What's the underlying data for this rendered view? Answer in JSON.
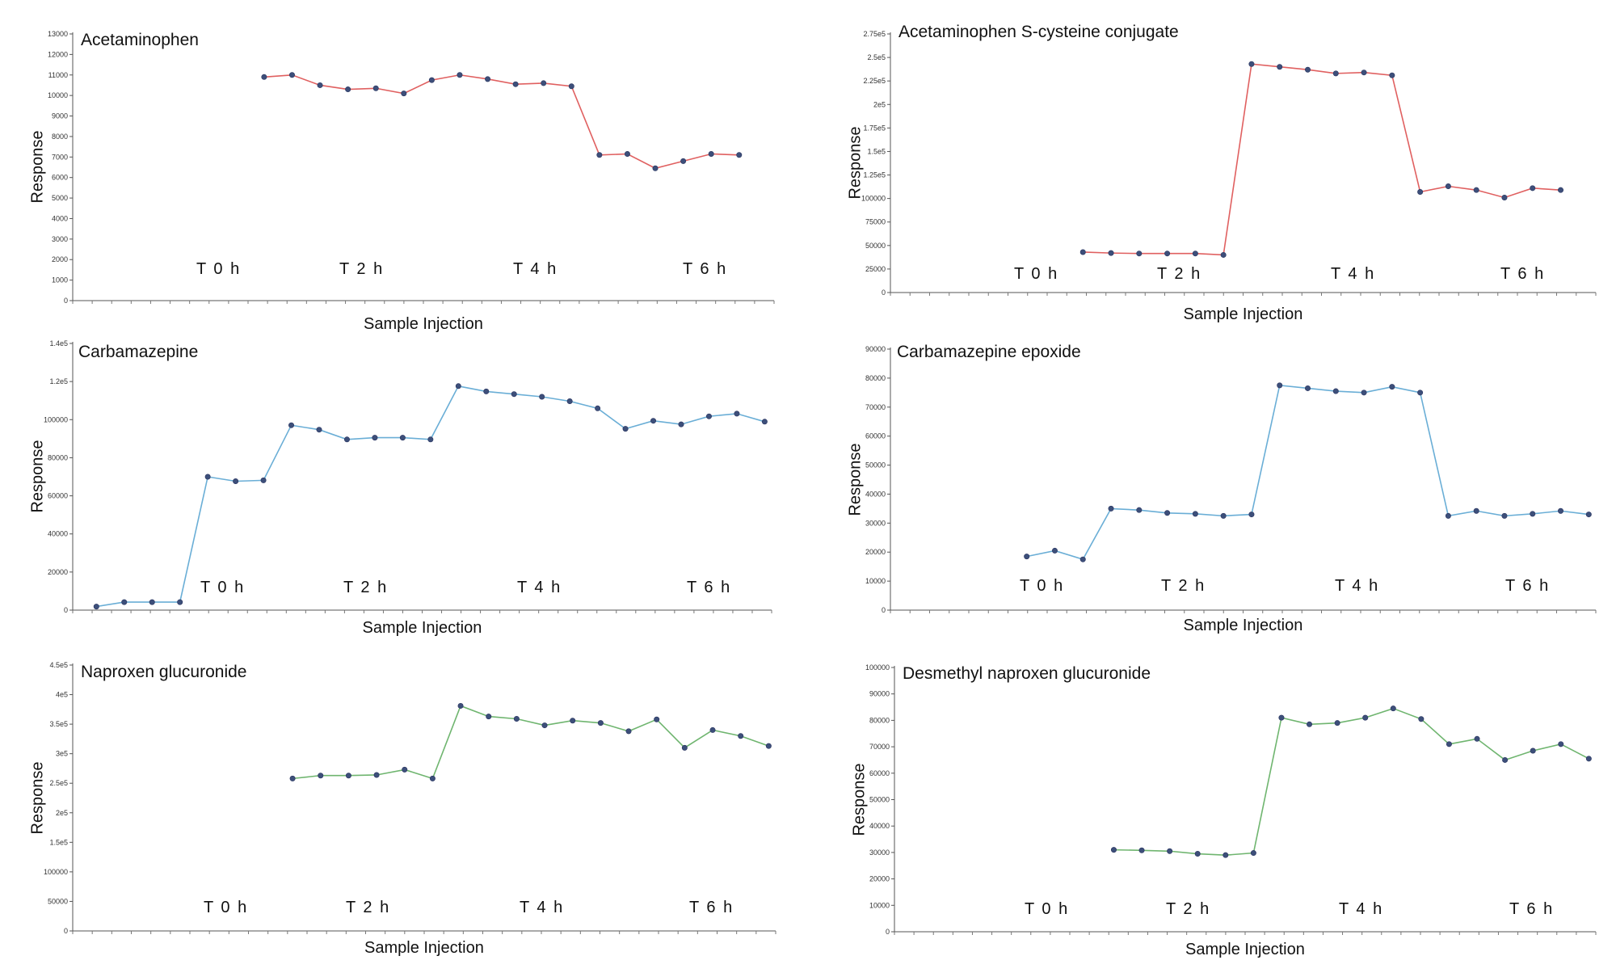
{
  "chart_data": [
    {
      "type": "line",
      "title": "Acetaminophen",
      "xlabel": "Sample Injection",
      "ylabel": "Response",
      "time_labels": [
        "T 0 h",
        "T 2 h",
        "T 4 h",
        "T 6 h"
      ],
      "yticks": [
        "0",
        "1000",
        "2000",
        "3000",
        "4000",
        "5000",
        "6000",
        "7000",
        "8000",
        "9000",
        "10000",
        "11000",
        "12000",
        "13000"
      ],
      "ylim": [
        0,
        13000
      ],
      "n_injections": 25,
      "color": "#e06060",
      "series": [
        {
          "x": [
            7,
            8,
            9,
            10,
            11,
            12,
            13,
            14,
            15,
            16,
            17,
            18,
            19,
            20,
            21,
            22,
            23,
            24
          ],
          "values": [
            10900,
            11000,
            10500,
            10300,
            10350,
            10100,
            10750,
            11000,
            10800,
            10550,
            10600,
            10450,
            7100,
            7150,
            6450,
            6800,
            7150,
            7100
          ]
        }
      ]
    },
    {
      "type": "line",
      "title": "Acetaminophen S-cysteine conjugate",
      "xlabel": "Sample Injection",
      "ylabel": "Response",
      "time_labels": [
        "T 0 h",
        "T 2 h",
        "T 4 h",
        "T 6 h"
      ],
      "yticks": [
        "0",
        "25000",
        "50000",
        "75000",
        "100000",
        "1.25e5",
        "1.5e5",
        "1.75e5",
        "2e5",
        "2.25e5",
        "2.5e5",
        "2.75e5"
      ],
      "ylim": [
        0,
        275000
      ],
      "n_injections": 25,
      "color": "#e06060",
      "series": [
        {
          "x": [
            7,
            8,
            9,
            10,
            11,
            12,
            13,
            14,
            15,
            16,
            17,
            18,
            19,
            20,
            21,
            22,
            23,
            24
          ],
          "values": [
            43000,
            42000,
            41500,
            41500,
            41500,
            40000,
            243000,
            240000,
            237000,
            233000,
            234000,
            231000,
            107000,
            113000,
            109000,
            101000,
            111000,
            109000
          ]
        }
      ]
    },
    {
      "type": "line",
      "title": "Carbamazepine",
      "xlabel": "Sample Injection",
      "ylabel": "Response",
      "time_labels": [
        "T 0 h",
        "T 2 h",
        "T 4 h",
        "T 6 h"
      ],
      "yticks": [
        "0",
        "20000",
        "40000",
        "60000",
        "80000",
        "100000",
        "1.2e5",
        "1.4e5"
      ],
      "ylim": [
        0,
        150000
      ],
      "n_injections": 25,
      "color": "#6aaed6",
      "series": [
        {
          "x": [
            1,
            2,
            3,
            4,
            5,
            6,
            7,
            8,
            9,
            10,
            11,
            12,
            13,
            14,
            15,
            16,
            17,
            18,
            19,
            20,
            21,
            22,
            23,
            24,
            25
          ],
          "values": [
            2000,
            4500,
            4500,
            4500,
            75000,
            72500,
            73000,
            104000,
            101500,
            96000,
            97000,
            97000,
            96000,
            126000,
            123000,
            121500,
            120000,
            117500,
            113500,
            102000,
            106500,
            104500,
            109000,
            110500,
            106000
          ]
        }
      ]
    },
    {
      "type": "line",
      "title": "Carbamazepine epoxide",
      "xlabel": "Sample Injection",
      "ylabel": "Response",
      "time_labels": [
        "T 0 h",
        "T 2 h",
        "T 4 h",
        "T 6 h"
      ],
      "yticks": [
        "0",
        "10000",
        "20000",
        "30000",
        "40000",
        "50000",
        "60000",
        "70000",
        "80000",
        "90000"
      ],
      "ylim": [
        0,
        90000
      ],
      "n_injections": 25,
      "color": "#6aaed6",
      "series": [
        {
          "x": [
            5,
            6,
            7,
            8,
            9,
            10,
            11,
            12,
            13,
            14,
            15,
            16,
            17,
            18,
            19,
            20,
            21,
            22,
            23,
            24,
            25
          ],
          "values": [
            18500,
            20500,
            17500,
            35000,
            34500,
            33500,
            33200,
            32500,
            33000,
            77500,
            76500,
            75500,
            75000,
            77000,
            75000,
            32500,
            34200,
            32500,
            33200,
            34200,
            33000
          ]
        }
      ]
    },
    {
      "type": "line",
      "title": "Naproxen glucuronide",
      "xlabel": "Sample Injection",
      "ylabel": "Response",
      "time_labels": [
        "T 0 h",
        "T 2 h",
        "T 4 h",
        "T 6 h"
      ],
      "yticks": [
        "0",
        "50000",
        "100000",
        "1.5e5",
        "2e5",
        "2.5e5",
        "3e5",
        "3.5e5",
        "4e5",
        "4.5e5"
      ],
      "ylim": [
        0,
        450000
      ],
      "n_injections": 25,
      "color": "#6fb56f",
      "series": [
        {
          "x": [
            8,
            9,
            10,
            11,
            12,
            13,
            14,
            15,
            16,
            17,
            18,
            19,
            20,
            21,
            22,
            23,
            24,
            25
          ],
          "values": [
            258000,
            263000,
            263000,
            264000,
            273000,
            258000,
            381000,
            363000,
            359000,
            348000,
            356000,
            352000,
            338000,
            358000,
            310000,
            340000,
            330000,
            313000
          ]
        }
      ]
    },
    {
      "type": "line",
      "title": "Desmethyl naproxen glucuronide",
      "xlabel": "Sample Injection",
      "ylabel": "Response",
      "time_labels": [
        "T 0 h",
        "T 2 h",
        "T 4 h",
        "T 6 h"
      ],
      "yticks": [
        "0",
        "10000",
        "20000",
        "30000",
        "40000",
        "50000",
        "60000",
        "70000",
        "80000",
        "90000",
        "100000"
      ],
      "ylim": [
        0,
        100000
      ],
      "n_injections": 25,
      "color": "#6fb56f",
      "series": [
        {
          "x": [
            8,
            9,
            10,
            11,
            12,
            13,
            14,
            15,
            16,
            17,
            18,
            19,
            20,
            21,
            22,
            23,
            24,
            25
          ],
          "values": [
            31000,
            30800,
            30500,
            29500,
            29000,
            29800,
            81000,
            78500,
            79000,
            81000,
            84500,
            80500,
            71000,
            73000,
            65000,
            68500,
            71000,
            65500
          ]
        }
      ]
    }
  ]
}
